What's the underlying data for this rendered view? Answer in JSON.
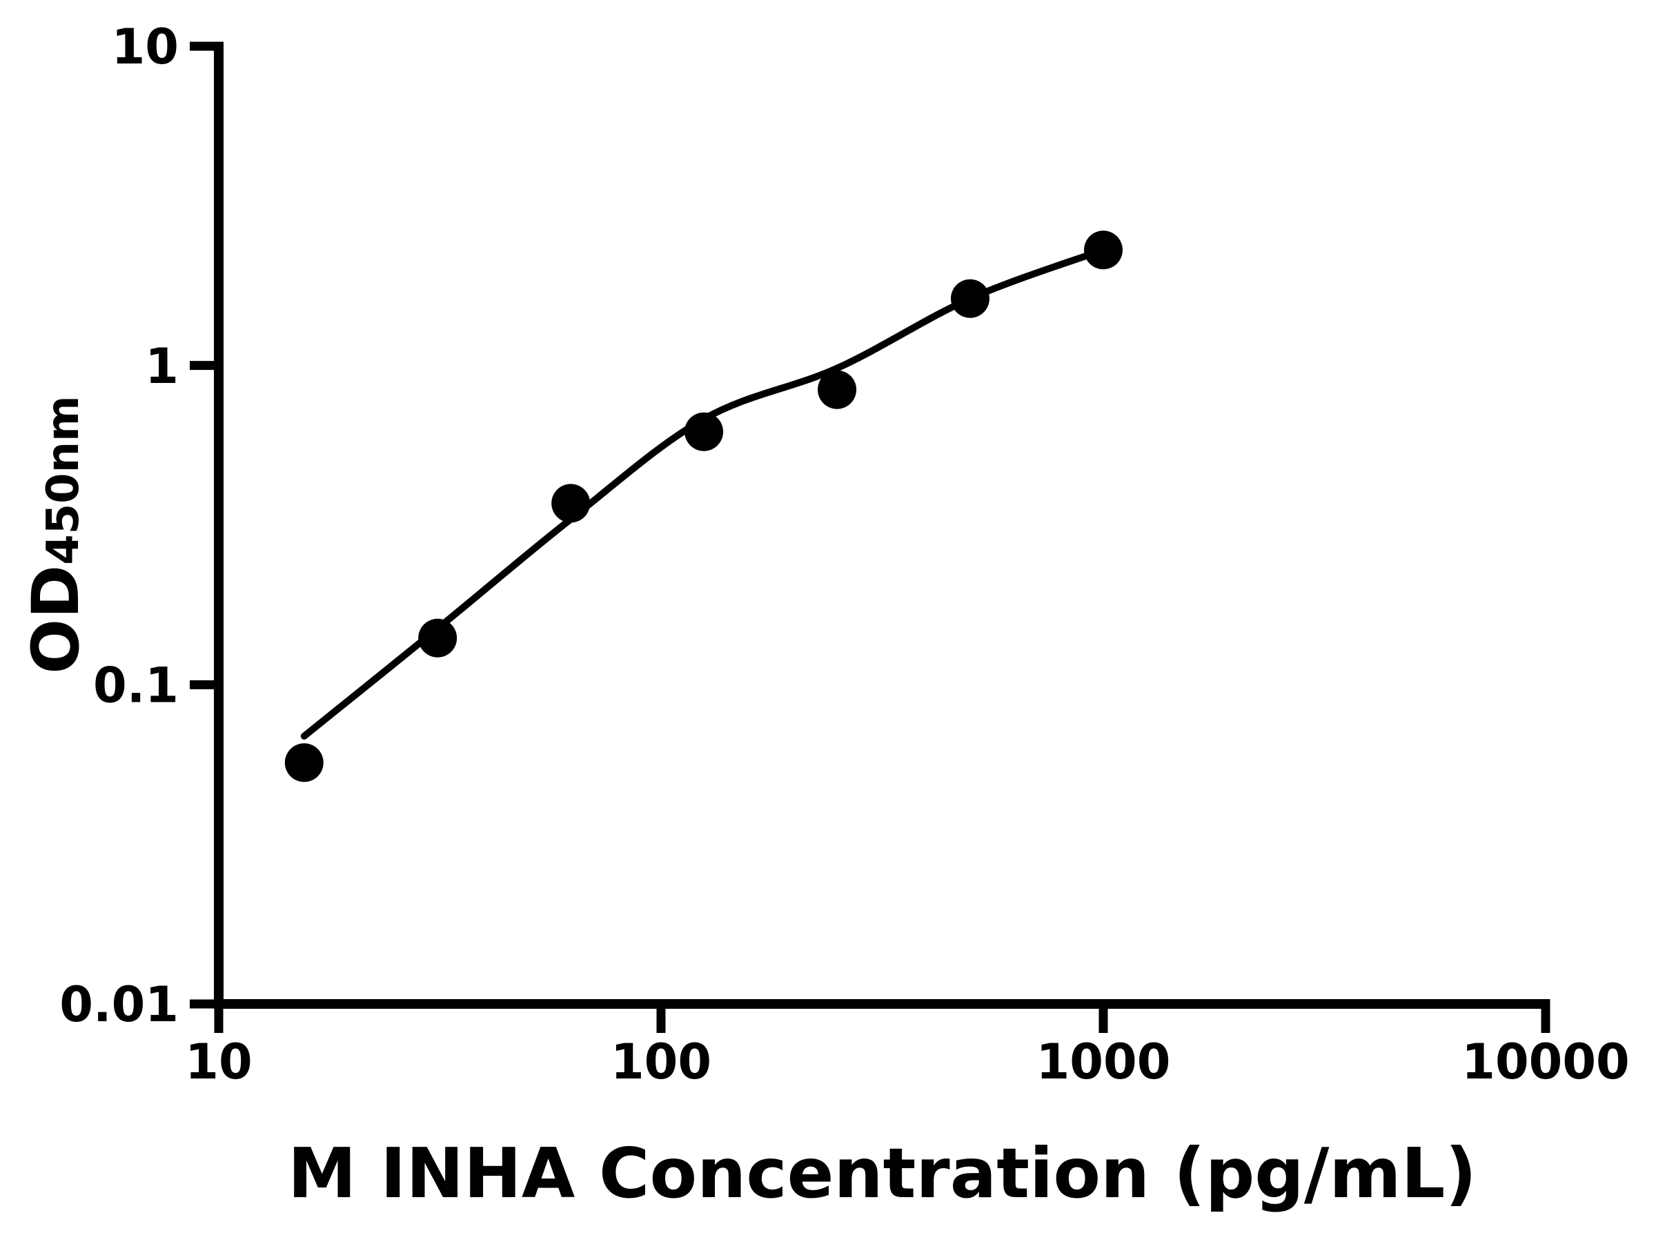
{
  "figure": {
    "background": "#ffffff",
    "ink": "#000000"
  },
  "chart_data": {
    "type": "scatter",
    "title": "",
    "xlabel": "M INHA Concentration (pg/mL)",
    "ylabel": "OD450nm",
    "ylabel_parts": {
      "main": "OD",
      "sub": "450nm"
    },
    "x_scale": "log",
    "y_scale": "log",
    "xlim": [
      10,
      10000
    ],
    "ylim": [
      0.01,
      10
    ],
    "x_ticks": [
      10,
      100,
      1000,
      10000
    ],
    "x_tick_labels": [
      "10",
      "100",
      "1000",
      "10000"
    ],
    "y_ticks": [
      10,
      1,
      0.1,
      0.01
    ],
    "y_tick_labels": [
      "10",
      "1",
      "0.1",
      "0.01"
    ],
    "grid": false,
    "legend": "none",
    "series": [
      {
        "name": "standard-points",
        "marker": "circle",
        "color": "#000000",
        "x": [
          15.6,
          31.25,
          62.5,
          125,
          250,
          500,
          1000
        ],
        "y": [
          0.057,
          0.14,
          0.37,
          0.62,
          0.84,
          1.62,
          2.3
        ]
      }
    ],
    "fit_curve": {
      "name": "fitted-standard-curve",
      "color": "#000000",
      "x": [
        15.6,
        31.25,
        62.5,
        125,
        250,
        500,
        1000
      ],
      "y": [
        0.069,
        0.15,
        0.33,
        0.68,
        0.98,
        1.62,
        2.3
      ]
    }
  }
}
